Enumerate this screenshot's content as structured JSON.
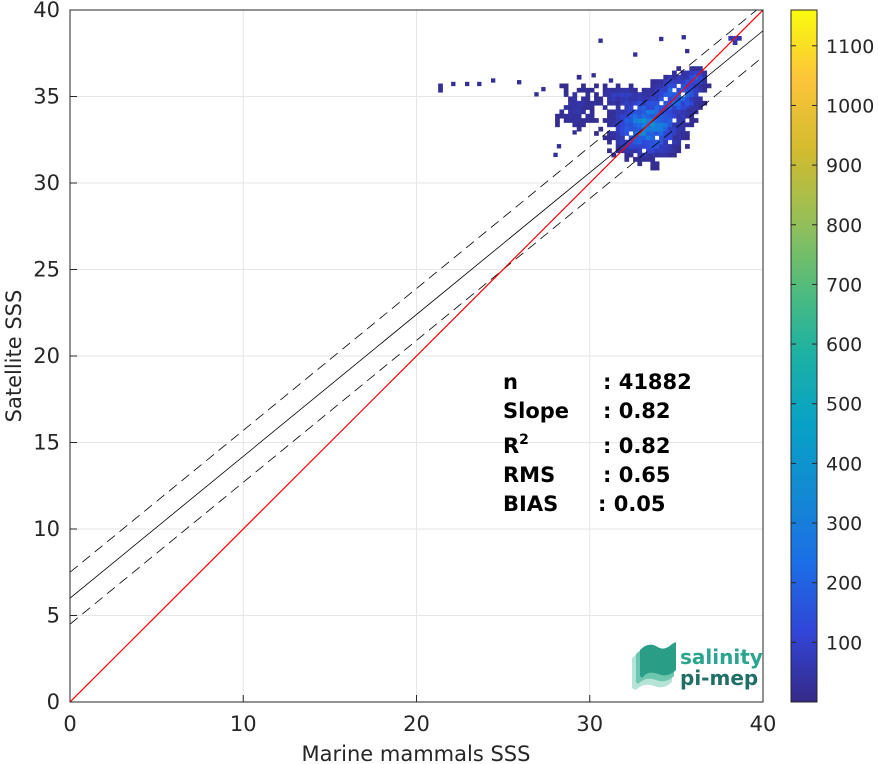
{
  "chart_data": {
    "type": "heatmap",
    "xlabel": "Marine mammals SSS",
    "ylabel": "Satellite SSS",
    "xlim": [
      0,
      40
    ],
    "ylim": [
      0,
      40
    ],
    "xticks": [
      "0",
      "10",
      "20",
      "30",
      "40"
    ],
    "yticks": [
      "0",
      "5",
      "10",
      "15",
      "20",
      "25",
      "30",
      "35",
      "40"
    ],
    "grid": true,
    "stats": [
      {
        "label": "n",
        "value": ": 41882"
      },
      {
        "label": "Slope",
        "value": ": 0.82"
      },
      {
        "label": "R",
        "sup": "2",
        "value": ": 0.82"
      },
      {
        "label": "RMS",
        "value": ": 0.65"
      },
      {
        "label": "BIAS",
        "value": ": 0.05"
      }
    ],
    "one_to_one_line": {
      "x": [
        0,
        40
      ],
      "y": [
        0,
        40
      ],
      "color": "#ff0000"
    },
    "regression_line": {
      "slope": 0.82,
      "intercept": 6.0,
      "color": "#000000"
    },
    "confidence_band": {
      "offset": 1.5,
      "style": "dashed",
      "color": "#000000"
    },
    "colorbar": {
      "range": [
        0,
        1160
      ],
      "ticks": [
        "100",
        "200",
        "300",
        "400",
        "500",
        "600",
        "700",
        "800",
        "900",
        "1000",
        "1100"
      ],
      "colormap": "parula"
    },
    "density_clusters": [
      {
        "x": 33.2,
        "y": 33.2,
        "sx": 1.0,
        "sy": 0.9,
        "peak": 320
      },
      {
        "x": 35.0,
        "y": 35.0,
        "sx": 0.7,
        "sy": 0.6,
        "peak": 210
      },
      {
        "x": 36.0,
        "y": 36.0,
        "sx": 0.3,
        "sy": 0.3,
        "peak": 150
      },
      {
        "x": 38.2,
        "y": 38.2,
        "sx": 0.2,
        "sy": 0.15,
        "peak": 120
      },
      {
        "x": 31.5,
        "y": 35.0,
        "sx": 0.7,
        "sy": 0.3,
        "peak": 60
      },
      {
        "x": 29.2,
        "y": 34.3,
        "sx": 0.8,
        "sy": 0.9,
        "peak": 40
      },
      {
        "x": 21.3,
        "y": 35.3,
        "sx": 0.05,
        "sy": 0.5,
        "peak": 30
      }
    ],
    "scatter_points": [
      [
        22.0,
        35.6
      ],
      [
        22.8,
        35.6
      ],
      [
        23.5,
        35.6
      ],
      [
        24.3,
        35.8
      ],
      [
        25.8,
        35.7
      ],
      [
        27.2,
        35.3
      ],
      [
        29.0,
        32.8
      ],
      [
        30.5,
        38.1
      ],
      [
        32.5,
        37.3
      ],
      [
        34.0,
        38.2
      ],
      [
        35.3,
        38.3
      ],
      [
        35.5,
        37.5
      ],
      [
        34.8,
        32.5
      ],
      [
        35.6,
        34.1
      ],
      [
        33.4,
        31.4
      ],
      [
        28.1,
        32.0
      ],
      [
        27.9,
        31.5
      ],
      [
        30.1,
        36.1
      ],
      [
        31.1,
        35.8
      ],
      [
        26.8,
        35.0
      ]
    ]
  },
  "logo": {
    "line1": "salinity",
    "line2": "pi-mep"
  },
  "colors": {
    "axis": "#262626",
    "grid": "#e6e6e6",
    "one_to_one": "#ff0000",
    "regression": "#000000"
  }
}
